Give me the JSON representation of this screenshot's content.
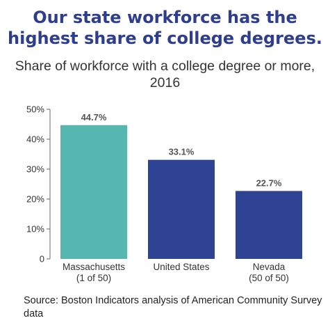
{
  "chart_data": {
    "type": "bar",
    "title": "Our state workforce has the highest share of college degrees.",
    "subtitle": "Share of workforce with a college degree or more, 2016",
    "categories": [
      [
        "Massachusetts",
        "(1 of 50)"
      ],
      [
        "United States"
      ],
      [
        "Nevada",
        "(50 of 50)"
      ]
    ],
    "values": [
      44.7,
      33.1,
      22.7
    ],
    "value_labels": [
      "44.7%",
      "33.1%",
      "22.7%"
    ],
    "bar_colors": [
      "#56b7b1",
      "#2e4393",
      "#2e4393"
    ],
    "ylim": [
      0,
      50
    ],
    "yticks": [
      0,
      10,
      20,
      30,
      40,
      50
    ],
    "ytick_labels": [
      "0",
      "10%",
      "20%",
      "30%",
      "40%",
      "50%"
    ],
    "xlabel": "",
    "ylabel": "",
    "grid": false,
    "source": "Source: Boston Indicators analysis of American Community Survey data"
  },
  "colors": {
    "title": "#2e3e8c",
    "axis": "#666666"
  }
}
